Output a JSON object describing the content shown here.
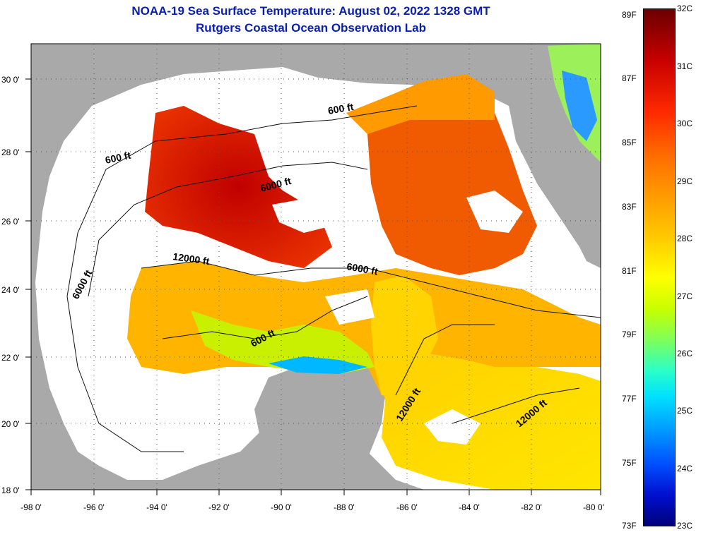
{
  "title": {
    "line1": "NOAA-19 Sea Surface Temperature:  August 02, 2022 1328 GMT",
    "line2": "Rutgers Coastal Ocean Observation Lab"
  },
  "map": {
    "lat_labels": [
      "30 0'",
      "28 0'",
      "26 0'",
      "24 0'",
      "22 0'",
      "20 0'",
      "18 0'"
    ],
    "lon_labels": [
      "-98 0'",
      "-96 0'",
      "-94 0'",
      "-92 0'",
      "-90 0'",
      "-88 0'",
      "-86 0'",
      "-84 0'",
      "-82 0'",
      "-80 0'"
    ],
    "contour_labels": [
      "600 ft",
      "600 ft",
      "6000 ft",
      "6000 ft",
      "6000 ft",
      "12000 ft",
      "600 ft",
      "12000 ft",
      "12000 ft"
    ],
    "colors": {
      "land": "#a9a9a9",
      "cloud": "#ffffff",
      "grid": "#555555"
    }
  },
  "colorbar": {
    "fahrenheit": [
      "89F",
      "87F",
      "85F",
      "83F",
      "81F",
      "79F",
      "77F",
      "75F",
      "73F"
    ],
    "celsius": [
      "32C",
      "31C",
      "30C",
      "29C",
      "28C",
      "27C",
      "26C",
      "25C",
      "24C",
      "23C"
    ]
  }
}
